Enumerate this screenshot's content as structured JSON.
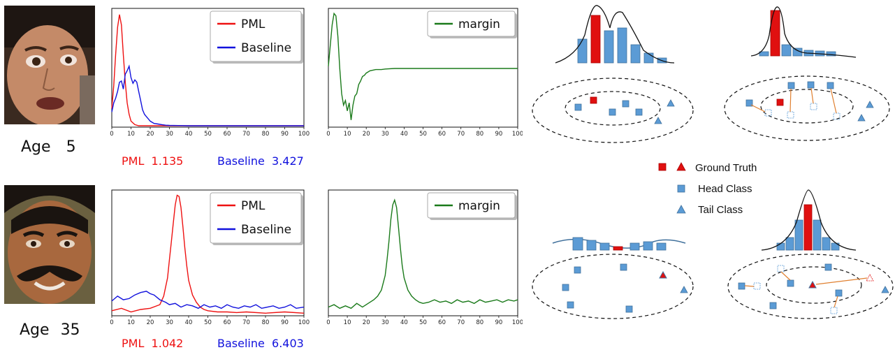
{
  "rows": [
    {
      "age_label": "Age",
      "age_value": "5",
      "pml_label": "PML",
      "pml_score": "1.135",
      "baseline_label": "Baseline",
      "baseline_score": "3.427"
    },
    {
      "age_label": "Age",
      "age_value": "35",
      "pml_label": "PML",
      "pml_score": "1.042",
      "baseline_label": "Baseline",
      "baseline_score": "6.403"
    }
  ],
  "legend": {
    "gt": "Ground Truth",
    "head": "Head Class",
    "tail": "Tail Class"
  },
  "colors": {
    "pml": "#ee1111",
    "baseline": "#1111dd",
    "margin": "#1a7a1a",
    "head": "#5b9bd5",
    "gt": "#e01010"
  },
  "chart_data": [
    {
      "type": "line",
      "xlim": [
        0,
        100
      ],
      "ticks": [
        0,
        10,
        20,
        30,
        40,
        50,
        60,
        70,
        80,
        90,
        100
      ],
      "series": [
        {
          "name": "PML",
          "x": [
            0,
            1,
            2,
            3,
            4,
            5,
            6,
            7,
            8,
            9,
            10,
            12,
            14,
            16,
            18,
            20,
            25,
            30,
            100
          ],
          "y": [
            0.15,
            0.35,
            0.62,
            0.86,
            0.97,
            0.88,
            0.62,
            0.38,
            0.2,
            0.1,
            0.04,
            0.01,
            0,
            0,
            0,
            0,
            0,
            0,
            0
          ]
        },
        {
          "name": "Baseline",
          "x": [
            0,
            1,
            2,
            3,
            4,
            5,
            6,
            7,
            8,
            9,
            10,
            11,
            12,
            13,
            14,
            15,
            16,
            17,
            18,
            19,
            20,
            22,
            24,
            26,
            28,
            30,
            35,
            40,
            100
          ],
          "y": [
            0.12,
            0.2,
            0.24,
            0.3,
            0.38,
            0.39,
            0.32,
            0.45,
            0.48,
            0.52,
            0.42,
            0.37,
            0.4,
            0.38,
            0.3,
            0.22,
            0.14,
            0.1,
            0.08,
            0.06,
            0.04,
            0.02,
            0.015,
            0.01,
            0.005,
            0.003,
            0.002,
            0,
            0
          ]
        }
      ]
    },
    {
      "type": "line",
      "xlim": [
        0,
        100
      ],
      "ticks": [
        0,
        10,
        20,
        30,
        40,
        50,
        60,
        70,
        80,
        90,
        100
      ],
      "series": [
        {
          "name": "margin",
          "x": [
            0,
            1,
            2,
            3,
            4,
            5,
            6,
            7,
            8,
            9,
            10,
            11,
            12,
            13,
            14,
            15,
            16,
            17,
            18,
            19,
            20,
            22,
            25,
            28,
            30,
            35,
            40,
            50,
            100
          ],
          "y": [
            0.52,
            0.7,
            0.88,
            0.98,
            0.96,
            0.78,
            0.5,
            0.28,
            0.18,
            0.22,
            0.13,
            0.2,
            0.05,
            0.18,
            0.26,
            0.28,
            0.36,
            0.39,
            0.43,
            0.44,
            0.46,
            0.48,
            0.49,
            0.49,
            0.495,
            0.5,
            0.5,
            0.5,
            0.5
          ]
        }
      ]
    },
    {
      "type": "line",
      "xlim": [
        0,
        100
      ],
      "ticks": [
        0,
        10,
        20,
        30,
        40,
        50,
        60,
        70,
        80,
        90,
        100
      ],
      "series": [
        {
          "name": "PML",
          "x": [
            0,
            5,
            10,
            15,
            20,
            25,
            27,
            29,
            30,
            31,
            32,
            33,
            34,
            35,
            36,
            37,
            38,
            39,
            40,
            42,
            44,
            46,
            48,
            50,
            55,
            60,
            65,
            70,
            80,
            90,
            100
          ],
          "y": [
            0.03,
            0.05,
            0.02,
            0.04,
            0.05,
            0.08,
            0.15,
            0.3,
            0.45,
            0.6,
            0.75,
            0.9,
            0.98,
            0.97,
            0.88,
            0.72,
            0.55,
            0.4,
            0.28,
            0.16,
            0.1,
            0.06,
            0.04,
            0.03,
            0.02,
            0.02,
            0.015,
            0.02,
            0.01,
            0.02,
            0.01
          ]
        },
        {
          "name": "Baseline",
          "x": [
            0,
            3,
            6,
            9,
            12,
            15,
            18,
            20,
            22,
            25,
            28,
            30,
            33,
            36,
            39,
            42,
            45,
            48,
            51,
            54,
            57,
            60,
            63,
            66,
            69,
            72,
            75,
            78,
            81,
            84,
            87,
            90,
            93,
            96,
            100
          ],
          "y": [
            0.11,
            0.15,
            0.12,
            0.13,
            0.16,
            0.18,
            0.19,
            0.17,
            0.16,
            0.12,
            0.1,
            0.08,
            0.09,
            0.06,
            0.08,
            0.07,
            0.05,
            0.08,
            0.06,
            0.07,
            0.05,
            0.08,
            0.06,
            0.05,
            0.07,
            0.06,
            0.08,
            0.05,
            0.06,
            0.07,
            0.05,
            0.06,
            0.08,
            0.05,
            0.06
          ]
        }
      ]
    },
    {
      "type": "line",
      "xlim": [
        0,
        100
      ],
      "ticks": [
        0,
        10,
        20,
        30,
        40,
        50,
        60,
        70,
        80,
        90,
        100
      ],
      "series": [
        {
          "name": "margin",
          "x": [
            0,
            3,
            6,
            9,
            12,
            15,
            18,
            20,
            22,
            24,
            26,
            28,
            30,
            31,
            32,
            33,
            34,
            35,
            36,
            37,
            38,
            39,
            40,
            42,
            44,
            46,
            48,
            50,
            53,
            56,
            59,
            62,
            65,
            68,
            71,
            74,
            77,
            80,
            83,
            86,
            89,
            92,
            95,
            98,
            100
          ],
          "y": [
            0.06,
            0.08,
            0.05,
            0.07,
            0.05,
            0.09,
            0.06,
            0.08,
            0.1,
            0.12,
            0.15,
            0.2,
            0.32,
            0.45,
            0.6,
            0.78,
            0.9,
            0.94,
            0.88,
            0.72,
            0.55,
            0.4,
            0.3,
            0.2,
            0.15,
            0.12,
            0.1,
            0.09,
            0.1,
            0.12,
            0.1,
            0.11,
            0.09,
            0.12,
            0.1,
            0.11,
            0.09,
            0.12,
            0.1,
            0.11,
            0.12,
            0.1,
            0.12,
            0.11,
            0.12
          ]
        }
      ]
    }
  ]
}
